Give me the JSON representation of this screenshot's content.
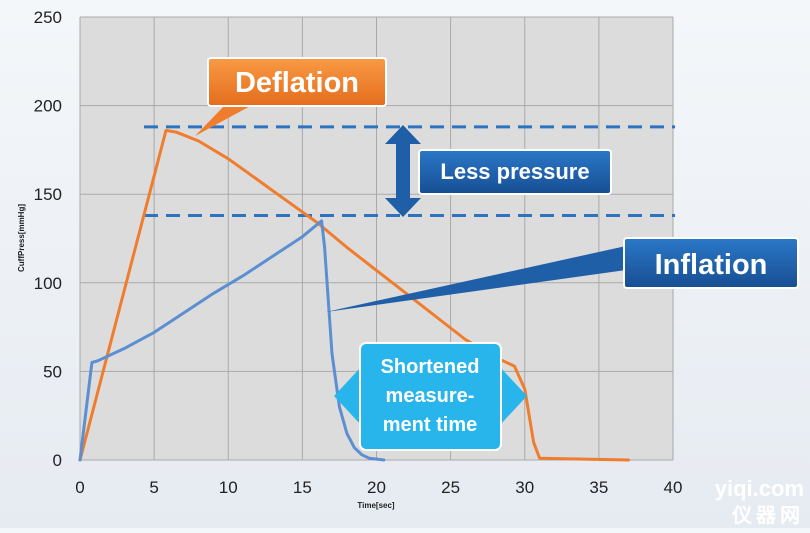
{
  "chart_data": {
    "type": "line",
    "xlabel": "Time[sec]",
    "ylabel": "CuffPress[mmHg]",
    "xlim": [
      0,
      40
    ],
    "ylim": [
      0,
      250
    ],
    "xticks": [
      "0",
      "5",
      "10",
      "15",
      "20",
      "25",
      "30",
      "35",
      "40"
    ],
    "yticks": [
      "0",
      "50",
      "100",
      "150",
      "200",
      "250"
    ],
    "grid": true,
    "series": [
      {
        "color": "#ef7d2d",
        "x": [
          0,
          5.8,
          6.5,
          8,
          10,
          12,
          14,
          16,
          18,
          20,
          22,
          24,
          26,
          28,
          29.3,
          30,
          30.6,
          31,
          37
        ],
        "y": [
          0,
          186,
          185,
          180,
          170,
          158,
          146,
          134,
          120,
          107,
          94,
          81,
          68,
          58,
          53,
          40,
          10,
          1,
          0
        ]
      },
      {
        "color": "#5b8fd1",
        "x": [
          0,
          0.8,
          1.2,
          3,
          5,
          7,
          9,
          11,
          13,
          15,
          16.3,
          16.5,
          17,
          17.5,
          18,
          18.5,
          19,
          19.5,
          20.5
        ],
        "y": [
          0,
          55,
          56,
          63,
          72,
          83,
          94,
          104,
          115,
          126,
          135,
          120,
          60,
          30,
          15,
          7,
          3,
          1,
          0
        ]
      }
    ],
    "reference_lines": [
      188,
      138
    ],
    "annotations": {
      "deflation": "Deflation",
      "less_pressure": "Less pressure",
      "inflation": "Inflation",
      "shortened": [
        "Shortened",
        "measure-",
        "ment time"
      ]
    }
  },
  "watermark": {
    "line1": "yiqi.com",
    "line2": "仪器网"
  },
  "colors": {
    "orange": "#ef7d2d",
    "blue_dark": "#1f5fa7",
    "blue_line": "#5b8fd1",
    "cyan": "#27b5ec",
    "ref_dash": "#2e73c0"
  }
}
